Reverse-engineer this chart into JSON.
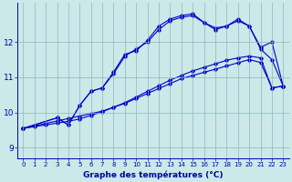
{
  "xlabel": "Graphe des températures (°C)",
  "bg_color": "#cce8e8",
  "line_color": "#0000cc",
  "grid_color": "#88bbbb",
  "axis_color": "#0000aa",
  "tick_color": "#0000aa",
  "xlim": [
    -0.5,
    23.5
  ],
  "ylim": [
    8.7,
    13.1
  ],
  "yticks": [
    9,
    10,
    11,
    12
  ],
  "xticks": [
    0,
    1,
    2,
    3,
    4,
    5,
    6,
    7,
    8,
    9,
    10,
    11,
    12,
    13,
    14,
    15,
    16,
    17,
    18,
    19,
    20,
    21,
    22,
    23
  ],
  "curve1_x": [
    0,
    1,
    2,
    3,
    4,
    5,
    6,
    7,
    8,
    9,
    10,
    11,
    12,
    13,
    14,
    15,
    16,
    17,
    18,
    19,
    20,
    21,
    22,
    23
  ],
  "curve1_y": [
    9.55,
    9.62,
    9.69,
    9.76,
    9.83,
    9.9,
    9.97,
    10.04,
    10.15,
    10.26,
    10.4,
    10.54,
    10.68,
    10.82,
    10.96,
    11.05,
    11.14,
    11.23,
    11.32,
    11.41,
    11.5,
    11.42,
    10.7,
    10.75
  ],
  "curve2_x": [
    0,
    1,
    2,
    3,
    4,
    5,
    6,
    7,
    8,
    9,
    10,
    11,
    12,
    13,
    14,
    15,
    16,
    17,
    18,
    19,
    20,
    21,
    22,
    23
  ],
  "curve2_y": [
    9.55,
    9.6,
    9.65,
    9.7,
    9.75,
    9.82,
    9.92,
    10.02,
    10.15,
    10.28,
    10.44,
    10.6,
    10.76,
    10.92,
    11.05,
    11.18,
    11.28,
    11.38,
    11.48,
    11.55,
    11.6,
    11.55,
    10.7,
    10.75
  ],
  "curve3_x": [
    0,
    3,
    4,
    5,
    6,
    7,
    8,
    9,
    10,
    11,
    12,
    13,
    14,
    15,
    16,
    17,
    18,
    19,
    20,
    21,
    22,
    23
  ],
  "curve3_y": [
    9.55,
    9.85,
    9.65,
    10.2,
    10.6,
    10.7,
    11.15,
    11.65,
    11.75,
    12.05,
    12.45,
    12.65,
    12.75,
    12.8,
    12.55,
    12.35,
    12.45,
    12.65,
    12.45,
    11.85,
    12.0,
    10.75
  ],
  "curve4_x": [
    0,
    3,
    4,
    5,
    6,
    7,
    8,
    9,
    10,
    11,
    12,
    13,
    14,
    15,
    16,
    17,
    18,
    19,
    20,
    21,
    22,
    23
  ],
  "curve4_y": [
    9.55,
    9.85,
    9.65,
    10.2,
    10.6,
    10.7,
    11.1,
    11.6,
    11.8,
    12.0,
    12.35,
    12.6,
    12.7,
    12.75,
    12.55,
    12.4,
    12.45,
    12.6,
    12.45,
    11.8,
    11.5,
    10.75
  ]
}
